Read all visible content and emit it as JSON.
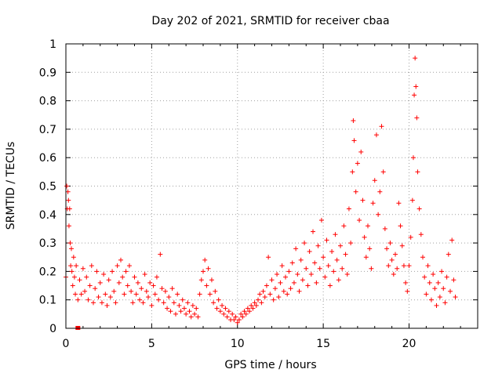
{
  "chart_data": {
    "type": "scatter",
    "title": "Day 202 of 2021, SRMTID for receiver cbaa",
    "xlabel": "GPS time / hours",
    "ylabel": "SRMTID / TECUs",
    "xlim": [
      0,
      24
    ],
    "ylim": [
      0,
      1
    ],
    "grid": true,
    "marker": "plus",
    "marker_color": "#ff0000",
    "x_ticks": [
      0,
      5,
      10,
      15,
      20
    ],
    "x_tick_labels": [
      "0",
      "5",
      "10",
      "15",
      "20"
    ],
    "y_ticks": [
      0,
      0.1,
      0.2,
      0.3,
      0.4,
      0.5,
      0.6,
      0.7,
      0.8,
      0.9,
      1
    ],
    "y_tick_labels": [
      "0",
      "0.1",
      "0.2",
      "0.3",
      "0.4",
      "0.5",
      "0.6",
      "0.7",
      "0.8",
      "0.9",
      "1"
    ],
    "series": [
      {
        "name": "SRMTID",
        "points": [
          [
            0.0,
            0.18
          ],
          [
            0.05,
            0.5
          ],
          [
            0.08,
            0.42
          ],
          [
            0.12,
            0.48
          ],
          [
            0.15,
            0.45
          ],
          [
            0.18,
            0.36
          ],
          [
            0.22,
            0.42
          ],
          [
            0.25,
            0.3
          ],
          [
            0.28,
            0.22
          ],
          [
            0.32,
            0.28
          ],
          [
            0.35,
            0.2
          ],
          [
            0.4,
            0.15
          ],
          [
            0.45,
            0.25
          ],
          [
            0.5,
            0.18
          ],
          [
            0.55,
            0.12
          ],
          [
            0.6,
            0.22
          ],
          [
            0.7,
            0.1
          ],
          [
            0.8,
            0.17
          ],
          [
            0.9,
            0.12
          ],
          [
            1.0,
            0.21
          ],
          [
            1.1,
            0.13
          ],
          [
            1.2,
            0.18
          ],
          [
            1.3,
            0.1
          ],
          [
            1.4,
            0.15
          ],
          [
            1.5,
            0.22
          ],
          [
            1.6,
            0.09
          ],
          [
            1.7,
            0.14
          ],
          [
            1.8,
            0.2
          ],
          [
            1.9,
            0.11
          ],
          [
            2.0,
            0.16
          ],
          [
            2.1,
            0.09
          ],
          [
            2.2,
            0.19
          ],
          [
            2.3,
            0.12
          ],
          [
            2.4,
            0.08
          ],
          [
            2.5,
            0.17
          ],
          [
            2.6,
            0.11
          ],
          [
            2.7,
            0.2
          ],
          [
            2.8,
            0.13
          ],
          [
            2.9,
            0.09
          ],
          [
            3.0,
            0.22
          ],
          [
            3.1,
            0.16
          ],
          [
            3.2,
            0.24
          ],
          [
            3.3,
            0.18
          ],
          [
            3.4,
            0.12
          ],
          [
            3.5,
            0.2
          ],
          [
            3.6,
            0.15
          ],
          [
            3.7,
            0.22
          ],
          [
            3.8,
            0.13
          ],
          [
            3.9,
            0.09
          ],
          [
            4.0,
            0.18
          ],
          [
            4.1,
            0.12
          ],
          [
            4.2,
            0.16
          ],
          [
            4.3,
            0.1
          ],
          [
            4.4,
            0.14
          ],
          [
            4.5,
            0.09
          ],
          [
            4.6,
            0.19
          ],
          [
            4.7,
            0.13
          ],
          [
            4.8,
            0.11
          ],
          [
            4.9,
            0.16
          ],
          [
            5.0,
            0.08
          ],
          [
            5.1,
            0.15
          ],
          [
            5.2,
            0.12
          ],
          [
            5.3,
            0.18
          ],
          [
            5.4,
            0.1
          ],
          [
            5.5,
            0.26
          ],
          [
            5.6,
            0.14
          ],
          [
            5.7,
            0.09
          ],
          [
            5.8,
            0.13
          ],
          [
            5.9,
            0.07
          ],
          [
            6.0,
            0.11
          ],
          [
            6.1,
            0.06
          ],
          [
            6.2,
            0.14
          ],
          [
            6.3,
            0.09
          ],
          [
            6.4,
            0.05
          ],
          [
            6.5,
            0.12
          ],
          [
            6.6,
            0.08
          ],
          [
            6.7,
            0.06
          ],
          [
            6.8,
            0.1
          ],
          [
            6.9,
            0.07
          ],
          [
            7.0,
            0.05
          ],
          [
            7.1,
            0.09
          ],
          [
            7.2,
            0.06
          ],
          [
            7.3,
            0.04
          ],
          [
            7.4,
            0.08
          ],
          [
            7.5,
            0.05
          ],
          [
            7.6,
            0.07
          ],
          [
            7.7,
            0.04
          ],
          [
            7.8,
            0.12
          ],
          [
            7.9,
            0.17
          ],
          [
            8.0,
            0.2
          ],
          [
            8.1,
            0.24
          ],
          [
            8.2,
            0.15
          ],
          [
            8.3,
            0.21
          ],
          [
            8.4,
            0.12
          ],
          [
            8.5,
            0.17
          ],
          [
            8.6,
            0.09
          ],
          [
            8.7,
            0.13
          ],
          [
            8.8,
            0.07
          ],
          [
            8.9,
            0.1
          ],
          [
            9.0,
            0.06
          ],
          [
            9.1,
            0.08
          ],
          [
            9.2,
            0.05
          ],
          [
            9.3,
            0.07
          ],
          [
            9.4,
            0.04
          ],
          [
            9.5,
            0.06
          ],
          [
            9.6,
            0.03
          ],
          [
            9.7,
            0.05
          ],
          [
            9.8,
            0.03
          ],
          [
            9.9,
            0.04
          ],
          [
            10.0,
            0.02
          ],
          [
            10.1,
            0.03
          ],
          [
            10.2,
            0.05
          ],
          [
            10.3,
            0.04
          ],
          [
            10.4,
            0.06
          ],
          [
            10.5,
            0.05
          ],
          [
            10.6,
            0.07
          ],
          [
            10.7,
            0.06
          ],
          [
            10.8,
            0.08
          ],
          [
            10.9,
            0.07
          ],
          [
            11.0,
            0.09
          ],
          [
            11.1,
            0.08
          ],
          [
            11.2,
            0.1
          ],
          [
            11.3,
            0.12
          ],
          [
            11.4,
            0.09
          ],
          [
            11.5,
            0.13
          ],
          [
            11.6,
            0.11
          ],
          [
            11.7,
            0.15
          ],
          [
            11.8,
            0.25
          ],
          [
            11.9,
            0.12
          ],
          [
            12.0,
            0.17
          ],
          [
            12.1,
            0.1
          ],
          [
            12.2,
            0.14
          ],
          [
            12.3,
            0.19
          ],
          [
            12.4,
            0.11
          ],
          [
            12.5,
            0.16
          ],
          [
            12.6,
            0.22
          ],
          [
            12.7,
            0.13
          ],
          [
            12.8,
            0.18
          ],
          [
            12.9,
            0.12
          ],
          [
            13.0,
            0.2
          ],
          [
            13.1,
            0.14
          ],
          [
            13.2,
            0.23
          ],
          [
            13.3,
            0.16
          ],
          [
            13.4,
            0.28
          ],
          [
            13.5,
            0.19
          ],
          [
            13.6,
            0.13
          ],
          [
            13.7,
            0.24
          ],
          [
            13.8,
            0.17
          ],
          [
            13.9,
            0.3
          ],
          [
            14.0,
            0.21
          ],
          [
            14.1,
            0.15
          ],
          [
            14.2,
            0.27
          ],
          [
            14.3,
            0.19
          ],
          [
            14.4,
            0.34
          ],
          [
            14.5,
            0.23
          ],
          [
            14.6,
            0.16
          ],
          [
            14.7,
            0.29
          ],
          [
            14.8,
            0.21
          ],
          [
            14.9,
            0.38
          ],
          [
            15.0,
            0.25
          ],
          [
            15.1,
            0.18
          ],
          [
            15.2,
            0.31
          ],
          [
            15.3,
            0.22
          ],
          [
            15.4,
            0.15
          ],
          [
            15.5,
            0.27
          ],
          [
            15.6,
            0.2
          ],
          [
            15.7,
            0.33
          ],
          [
            15.8,
            0.24
          ],
          [
            15.9,
            0.17
          ],
          [
            16.0,
            0.29
          ],
          [
            16.1,
            0.21
          ],
          [
            16.2,
            0.36
          ],
          [
            16.3,
            0.26
          ],
          [
            16.4,
            0.19
          ],
          [
            16.5,
            0.42
          ],
          [
            16.6,
            0.3
          ],
          [
            16.7,
            0.55
          ],
          [
            16.75,
            0.73
          ],
          [
            16.8,
            0.66
          ],
          [
            16.9,
            0.48
          ],
          [
            17.0,
            0.58
          ],
          [
            17.1,
            0.38
          ],
          [
            17.2,
            0.62
          ],
          [
            17.3,
            0.45
          ],
          [
            17.4,
            0.32
          ],
          [
            17.5,
            0.25
          ],
          [
            17.6,
            0.36
          ],
          [
            17.7,
            0.28
          ],
          [
            17.8,
            0.21
          ],
          [
            17.9,
            0.44
          ],
          [
            18.0,
            0.52
          ],
          [
            18.1,
            0.68
          ],
          [
            18.2,
            0.4
          ],
          [
            18.3,
            0.48
          ],
          [
            18.4,
            0.71
          ],
          [
            18.5,
            0.55
          ],
          [
            18.6,
            0.35
          ],
          [
            18.7,
            0.28
          ],
          [
            18.8,
            0.22
          ],
          [
            18.9,
            0.3
          ],
          [
            19.0,
            0.24
          ],
          [
            19.1,
            0.19
          ],
          [
            19.2,
            0.26
          ],
          [
            19.3,
            0.21
          ],
          [
            19.4,
            0.44
          ],
          [
            19.5,
            0.36
          ],
          [
            19.6,
            0.29
          ],
          [
            19.7,
            0.22
          ],
          [
            19.8,
            0.16
          ],
          [
            19.9,
            0.13
          ],
          [
            20.0,
            0.22
          ],
          [
            20.1,
            0.32
          ],
          [
            20.2,
            0.45
          ],
          [
            20.25,
            0.6
          ],
          [
            20.3,
            0.82
          ],
          [
            20.35,
            0.95
          ],
          [
            20.4,
            0.85
          ],
          [
            20.45,
            0.74
          ],
          [
            20.5,
            0.55
          ],
          [
            20.6,
            0.42
          ],
          [
            20.7,
            0.33
          ],
          [
            20.8,
            0.25
          ],
          [
            20.9,
            0.18
          ],
          [
            21.0,
            0.12
          ],
          [
            21.1,
            0.22
          ],
          [
            21.2,
            0.16
          ],
          [
            21.3,
            0.1
          ],
          [
            21.4,
            0.19
          ],
          [
            21.5,
            0.14
          ],
          [
            21.6,
            0.08
          ],
          [
            21.7,
            0.16
          ],
          [
            21.8,
            0.11
          ],
          [
            21.9,
            0.2
          ],
          [
            22.0,
            0.14
          ],
          [
            22.1,
            0.09
          ],
          [
            22.2,
            0.18
          ],
          [
            22.3,
            0.26
          ],
          [
            22.4,
            0.13
          ],
          [
            22.5,
            0.31
          ],
          [
            22.6,
            0.17
          ],
          [
            22.7,
            0.11
          ]
        ]
      }
    ],
    "outliers": [
      [
        0.7,
        0.0
      ]
    ]
  }
}
